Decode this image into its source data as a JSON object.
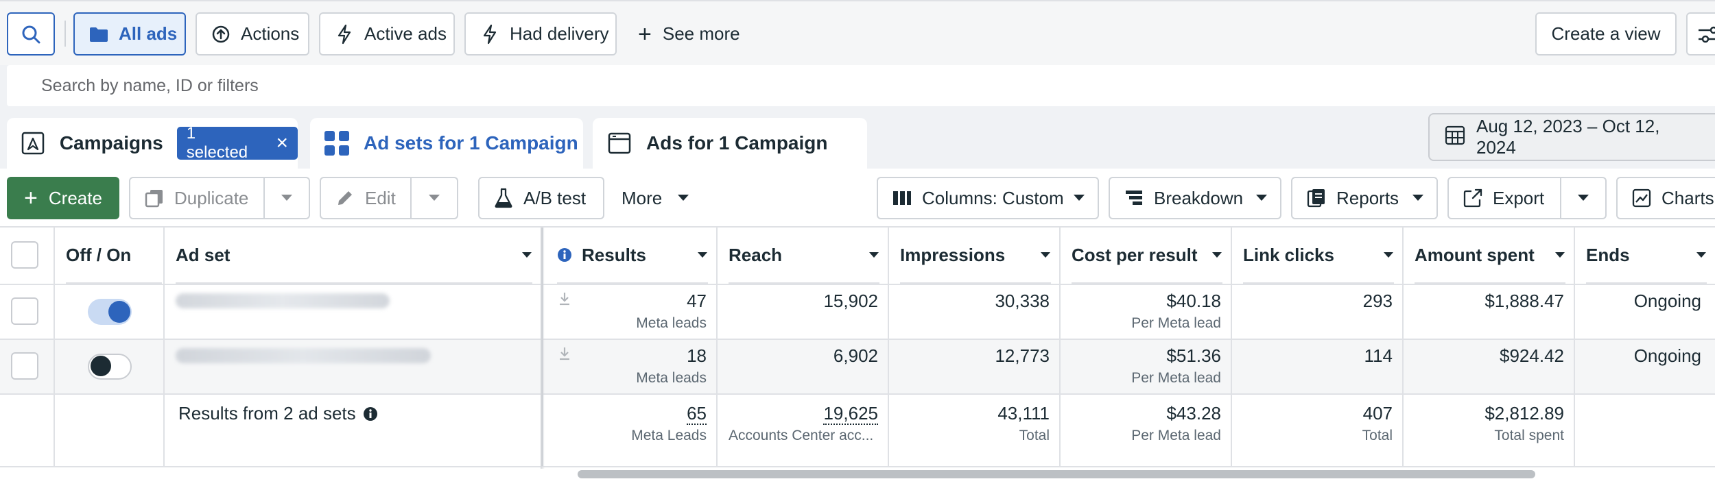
{
  "filters": {
    "all_ads": "All ads",
    "actions": "Actions",
    "active_ads": "Active ads",
    "had_delivery": "Had delivery",
    "see_more": "See more",
    "create_view": "Create a view"
  },
  "search": {
    "placeholder": "Search by name, ID or filters"
  },
  "tabs": {
    "campaigns": "Campaigns",
    "selected_chip": "1 selected",
    "ad_sets": "Ad sets for 1 Campaign",
    "ads": "Ads for 1 Campaign"
  },
  "date_range": "Aug 12, 2023 – Oct 12, 2024",
  "toolbar": {
    "create": "Create",
    "duplicate": "Duplicate",
    "edit": "Edit",
    "ab_test": "A/B test",
    "more": "More",
    "columns": "Columns: Custom",
    "breakdown": "Breakdown",
    "reports": "Reports",
    "export": "Export",
    "charts": "Charts"
  },
  "table": {
    "headers": {
      "toggle": "Off / On",
      "ad_set": "Ad set",
      "results": "Results",
      "reach": "Reach",
      "impressions": "Impressions",
      "cost_per_result": "Cost per result",
      "link_clicks": "Link clicks",
      "amount_spent": "Amount spent",
      "ends": "Ends"
    },
    "rows": [
      {
        "on": true,
        "results": "47",
        "results_sub": "Meta leads",
        "reach": "15,902",
        "impressions": "30,338",
        "cost": "$40.18",
        "cost_sub": "Per Meta lead",
        "clicks": "293",
        "spent": "$1,888.47",
        "ends": "Ongoing"
      },
      {
        "on": false,
        "results": "18",
        "results_sub": "Meta leads",
        "reach": "6,902",
        "impressions": "12,773",
        "cost": "$51.36",
        "cost_sub": "Per Meta lead",
        "clicks": "114",
        "spent": "$924.42",
        "ends": "Ongoing"
      }
    ],
    "summary": {
      "label": "Results from 2 ad sets",
      "results": "65",
      "results_sub": "Meta Leads",
      "reach": "19,625",
      "reach_sub": "Accounts Center acc...",
      "impressions": "43,111",
      "impressions_sub": "Total",
      "cost": "$43.28",
      "cost_sub": "Per Meta lead",
      "clicks": "407",
      "clicks_sub": "Total",
      "spent": "$2,812.89",
      "spent_sub": "Total spent"
    }
  },
  "colors": {
    "accent": "#2d64bc",
    "create_green": "#3a7d4d",
    "toggle_on": "#2d64bc",
    "toggle_off": "#1c2b33"
  }
}
